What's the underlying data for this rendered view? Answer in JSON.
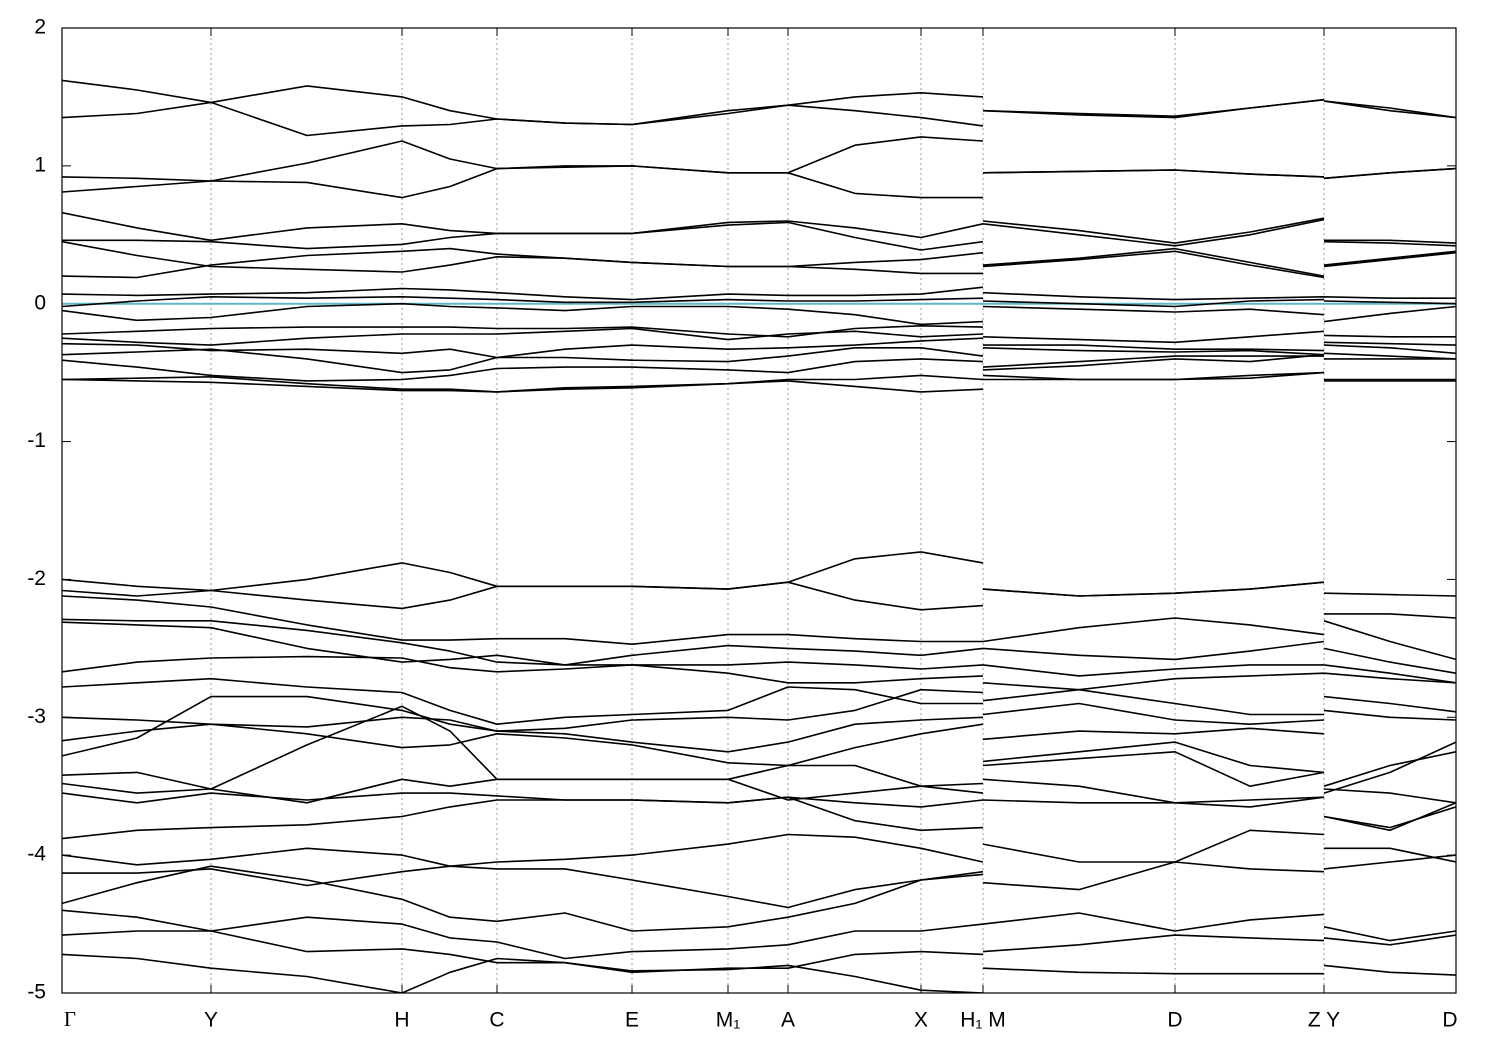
{
  "chart_data": {
    "type": "line",
    "line_color": "#000000",
    "fermi_level": 0,
    "fermi_color": "#5fb8c8",
    "grid": true,
    "xlim": [
      0,
      13.94
    ],
    "ylim": [
      -5,
      2
    ],
    "yticks": [
      -5,
      -4,
      -3,
      -2,
      -1,
      0,
      1,
      2
    ],
    "xticks": [
      {
        "value": 0,
        "label": "Γ"
      },
      {
        "value": 1.49,
        "label": "Y"
      },
      {
        "value": 3.4,
        "label": "H"
      },
      {
        "value": 4.35,
        "label": "C"
      },
      {
        "value": 5.7,
        "label": "E"
      },
      {
        "value": 6.66,
        "label": "M₁"
      },
      {
        "value": 7.26,
        "label": "A"
      },
      {
        "value": 8.59,
        "label": "X"
      },
      {
        "value": 9.21,
        "label": "H₁ M"
      },
      {
        "value": 11.13,
        "label": "D"
      },
      {
        "value": 12.62,
        "label": "Z Y"
      },
      {
        "value": 13.94,
        "label": "D"
      }
    ],
    "x": [
      0,
      0.75,
      1.49,
      2.45,
      3.4,
      3.88,
      4.35,
      5.03,
      5.7,
      6.66,
      7.26,
      7.93,
      8.59,
      9.21,
      9.21,
      9.21,
      10.17,
      11.13,
      11.88,
      12.62,
      12.62,
      12.62,
      13.28,
      13.94
    ],
    "series": [
      {
        "values": [
          1.62,
          1.55,
          1.46,
          1.58,
          1.5,
          1.4,
          1.34,
          1.31,
          1.3,
          1.4,
          1.44,
          1.5,
          1.53,
          1.5,
          null,
          1.4,
          1.38,
          1.36,
          1.42,
          1.48,
          null,
          1.47,
          1.42,
          1.35
        ]
      },
      {
        "values": [
          1.35,
          1.38,
          1.46,
          1.22,
          1.29,
          1.3,
          1.34,
          1.31,
          1.3,
          1.38,
          1.44,
          1.4,
          1.35,
          1.29,
          null,
          1.4,
          1.37,
          1.35,
          1.42,
          1.48,
          null,
          1.47,
          1.4,
          1.35
        ]
      },
      {
        "values": [
          0.92,
          0.91,
          0.89,
          1.02,
          1.18,
          1.05,
          0.98,
          1.0,
          1.0,
          0.95,
          0.95,
          1.15,
          1.21,
          1.18,
          null,
          0.95,
          0.96,
          0.97,
          0.94,
          0.92,
          null,
          0.91,
          0.95,
          0.98
        ]
      },
      {
        "values": [
          0.81,
          0.85,
          0.89,
          0.88,
          0.77,
          0.85,
          0.98,
          0.99,
          1.0,
          0.95,
          0.95,
          0.8,
          0.77,
          0.77,
          null,
          0.95,
          0.96,
          0.97,
          0.94,
          0.92,
          null,
          0.91,
          0.95,
          0.98
        ]
      },
      {
        "values": [
          0.66,
          0.55,
          0.46,
          0.55,
          0.58,
          0.53,
          0.51,
          0.51,
          0.51,
          0.59,
          0.6,
          0.55,
          0.48,
          0.58,
          null,
          0.6,
          0.53,
          0.44,
          0.52,
          0.62,
          null,
          0.46,
          0.46,
          0.44
        ]
      },
      {
        "values": [
          0.46,
          0.46,
          0.45,
          0.4,
          0.43,
          0.48,
          0.51,
          0.51,
          0.51,
          0.57,
          0.59,
          0.48,
          0.39,
          0.45,
          null,
          0.58,
          0.5,
          0.42,
          0.5,
          0.61,
          null,
          0.45,
          0.44,
          0.42
        ]
      },
      {
        "values": [
          0.45,
          0.35,
          0.27,
          0.25,
          0.23,
          0.28,
          0.34,
          0.33,
          0.3,
          0.27,
          0.27,
          0.3,
          0.32,
          0.37,
          null,
          0.27,
          0.32,
          0.38,
          0.28,
          0.19,
          null,
          0.27,
          0.32,
          0.37
        ]
      },
      {
        "values": [
          0.2,
          0.19,
          0.28,
          0.35,
          0.38,
          0.4,
          0.36,
          0.33,
          0.3,
          0.27,
          0.27,
          0.25,
          0.22,
          0.22,
          null,
          0.28,
          0.33,
          0.4,
          0.3,
          0.2,
          null,
          0.28,
          0.33,
          0.38
        ]
      },
      {
        "values": [
          0.07,
          0.06,
          0.07,
          0.08,
          0.11,
          0.1,
          0.08,
          0.05,
          0.03,
          0.07,
          0.06,
          0.06,
          0.07,
          0.12,
          null,
          0.08,
          0.05,
          0.03,
          0.04,
          0.05,
          null,
          0.05,
          0.04,
          0.04
        ]
      },
      {
        "values": [
          -0.02,
          0.02,
          0.05,
          0.04,
          0.05,
          0.04,
          0.03,
          0.01,
          0.01,
          0.03,
          0.02,
          0.02,
          0.03,
          0.04,
          null,
          0.02,
          0.0,
          -0.02,
          0.02,
          0.03,
          null,
          0.02,
          0.01,
          0.0
        ]
      },
      {
        "values": [
          -0.05,
          -0.12,
          -0.1,
          -0.02,
          0.0,
          -0.02,
          -0.03,
          -0.05,
          -0.02,
          -0.02,
          -0.04,
          -0.08,
          -0.15,
          -0.13,
          null,
          -0.02,
          -0.04,
          -0.06,
          -0.04,
          -0.08,
          null,
          -0.13,
          -0.07,
          -0.02
        ]
      },
      {
        "values": [
          -0.22,
          -0.2,
          -0.18,
          -0.17,
          -0.17,
          -0.17,
          -0.18,
          -0.18,
          -0.17,
          -0.22,
          -0.24,
          -0.18,
          -0.16,
          -0.17,
          null,
          -0.24,
          -0.26,
          -0.28,
          -0.24,
          -0.2,
          null,
          -0.23,
          -0.24,
          -0.24
        ]
      },
      {
        "values": [
          -0.25,
          -0.28,
          -0.3,
          -0.25,
          -0.22,
          -0.22,
          -0.22,
          -0.2,
          -0.18,
          -0.26,
          -0.22,
          -0.2,
          -0.24,
          -0.22,
          null,
          -0.3,
          -0.3,
          -0.33,
          -0.33,
          -0.34,
          null,
          -0.28,
          -0.29,
          -0.3
        ]
      },
      {
        "values": [
          -0.29,
          -0.3,
          -0.34,
          -0.33,
          -0.36,
          -0.33,
          -0.39,
          -0.33,
          -0.3,
          -0.33,
          -0.32,
          -0.3,
          -0.27,
          -0.25,
          null,
          -0.32,
          -0.34,
          -0.35,
          -0.34,
          -0.37,
          null,
          -0.3,
          -0.32,
          -0.36
        ]
      },
      {
        "values": [
          -0.37,
          -0.35,
          -0.33,
          -0.4,
          -0.5,
          -0.48,
          -0.39,
          -0.39,
          -0.41,
          -0.42,
          -0.38,
          -0.32,
          -0.32,
          -0.38,
          null,
          -0.46,
          -0.42,
          -0.38,
          -0.38,
          -0.38,
          null,
          -0.36,
          -0.38,
          -0.4
        ]
      },
      {
        "values": [
          -0.41,
          -0.46,
          -0.52,
          -0.56,
          -0.55,
          -0.52,
          -0.47,
          -0.46,
          -0.46,
          -0.48,
          -0.5,
          -0.42,
          -0.4,
          -0.42,
          null,
          -0.48,
          -0.45,
          -0.4,
          -0.42,
          -0.37,
          null,
          -0.4,
          -0.4,
          -0.4
        ]
      },
      {
        "values": [
          -0.55,
          -0.54,
          -0.53,
          -0.58,
          -0.62,
          -0.62,
          -0.64,
          -0.61,
          -0.6,
          -0.58,
          -0.55,
          -0.55,
          -0.52,
          -0.55,
          null,
          -0.52,
          -0.55,
          -0.55,
          -0.52,
          -0.5,
          null,
          -0.55,
          -0.55,
          -0.55
        ]
      },
      {
        "values": [
          -0.55,
          -0.56,
          -0.57,
          -0.6,
          -0.63,
          -0.63,
          -0.64,
          -0.62,
          -0.61,
          -0.58,
          -0.56,
          -0.6,
          -0.64,
          -0.62,
          null,
          -0.55,
          -0.55,
          -0.55,
          -0.54,
          -0.5,
          null,
          -0.56,
          -0.56,
          -0.56
        ]
      },
      {
        "values": [
          -2.0,
          -2.05,
          -2.08,
          -2.0,
          -1.88,
          -1.95,
          -2.05,
          -2.05,
          -2.05,
          -2.07,
          -2.02,
          -1.85,
          -1.8,
          -1.88,
          null,
          -2.07,
          -2.12,
          -2.1,
          -2.07,
          -2.02,
          null,
          -2.1,
          -2.11,
          -2.12
        ]
      },
      {
        "values": [
          -2.08,
          -2.12,
          -2.08,
          -2.15,
          -2.21,
          -2.15,
          -2.05,
          -2.05,
          -2.05,
          -2.07,
          -2.02,
          -2.15,
          -2.22,
          -2.19,
          null,
          -2.07,
          -2.12,
          -2.1,
          -2.07,
          -2.02,
          null,
          -2.25,
          -2.25,
          -2.28
        ]
      },
      {
        "values": [
          -2.12,
          -2.15,
          -2.2,
          -2.33,
          -2.44,
          -2.44,
          -2.43,
          -2.43,
          -2.47,
          -2.4,
          -2.4,
          -2.43,
          -2.45,
          -2.45,
          null,
          -2.45,
          -2.35,
          -2.28,
          -2.33,
          -2.4,
          null,
          -2.3,
          -2.45,
          -2.58
        ]
      },
      {
        "values": [
          -2.29,
          -2.3,
          -2.3,
          -2.37,
          -2.46,
          -2.52,
          -2.6,
          -2.62,
          -2.55,
          -2.48,
          -2.5,
          -2.52,
          -2.55,
          -2.5,
          null,
          -2.5,
          -2.55,
          -2.58,
          -2.52,
          -2.45,
          null,
          -2.5,
          -2.6,
          -2.68
        ]
      },
      {
        "values": [
          -2.31,
          -2.33,
          -2.35,
          -2.5,
          -2.6,
          -2.58,
          -2.55,
          -2.62,
          -2.62,
          -2.62,
          -2.6,
          -2.62,
          -2.65,
          -2.62,
          null,
          -2.62,
          -2.7,
          -2.65,
          -2.62,
          -2.62,
          null,
          -2.62,
          -2.68,
          -2.75
        ]
      },
      {
        "values": [
          -2.67,
          -2.6,
          -2.57,
          -2.56,
          -2.57,
          -2.64,
          -2.67,
          -2.65,
          -2.62,
          -2.68,
          -2.75,
          -2.75,
          -2.72,
          -2.7,
          null,
          -2.75,
          -2.8,
          -2.72,
          -2.7,
          -2.68,
          null,
          -2.68,
          -2.72,
          -2.75
        ]
      },
      {
        "values": [
          -2.78,
          -2.75,
          -2.72,
          -2.78,
          -2.82,
          -2.95,
          -3.05,
          -3.0,
          -2.98,
          -2.95,
          -2.78,
          -2.8,
          -2.9,
          -2.9,
          null,
          -2.88,
          -2.8,
          -2.9,
          -2.98,
          -2.98,
          null,
          -2.85,
          -2.9,
          -2.96
        ]
      },
      {
        "values": [
          -3.0,
          -3.02,
          -3.05,
          -3.07,
          -3.0,
          -3.02,
          -3.1,
          -3.08,
          -3.02,
          -3.0,
          -3.02,
          -2.95,
          -2.8,
          -2.82,
          null,
          -2.98,
          -2.9,
          -3.02,
          -3.05,
          -3.02,
          null,
          -2.95,
          -3.0,
          -3.02
        ]
      },
      {
        "values": [
          -3.17,
          -3.1,
          -3.05,
          -3.12,
          -3.22,
          -3.2,
          -3.12,
          -3.15,
          -3.2,
          -3.33,
          -3.35,
          -3.22,
          -3.12,
          -3.05,
          null,
          -3.16,
          -3.1,
          -3.12,
          -3.08,
          -3.12,
          null,
          -3.55,
          -3.4,
          -3.18
        ]
      },
      {
        "values": [
          -3.28,
          -3.15,
          -2.85,
          -2.85,
          -2.95,
          -3.05,
          -3.1,
          -3.12,
          -3.18,
          -3.25,
          -3.18,
          -3.05,
          -3.02,
          -3.0,
          null,
          -3.32,
          -3.25,
          -3.18,
          -3.35,
          -3.4,
          null,
          -3.5,
          -3.35,
          -3.25
        ]
      },
      {
        "values": [
          -3.42,
          -3.4,
          -3.52,
          -3.2,
          -2.92,
          -3.1,
          -3.45,
          -3.45,
          -3.45,
          -3.45,
          -3.6,
          -3.55,
          -3.5,
          -3.48,
          null,
          -3.35,
          -3.3,
          -3.25,
          -3.5,
          -3.4,
          null,
          -3.52,
          -3.55,
          -3.62
        ]
      },
      {
        "values": [
          -3.48,
          -3.55,
          -3.52,
          -3.62,
          -3.45,
          -3.5,
          -3.45,
          -3.45,
          -3.45,
          -3.45,
          -3.35,
          -3.35,
          -3.5,
          -3.55,
          null,
          -3.45,
          -3.5,
          -3.62,
          -3.6,
          -3.58,
          null,
          -3.72,
          -3.82,
          -3.62
        ]
      },
      {
        "values": [
          -3.55,
          -3.62,
          -3.55,
          -3.6,
          -3.55,
          -3.55,
          -3.57,
          -3.6,
          -3.6,
          -3.62,
          -3.58,
          -3.62,
          -3.65,
          -3.6,
          null,
          -3.6,
          -3.62,
          -3.62,
          -3.65,
          -3.58,
          null,
          -3.72,
          -3.8,
          -3.65
        ]
      },
      {
        "values": [
          -3.88,
          -3.82,
          -3.8,
          -3.78,
          -3.72,
          -3.65,
          -3.6,
          -3.6,
          -3.6,
          -3.62,
          -3.58,
          -3.75,
          -3.82,
          -3.8,
          null,
          -3.92,
          -4.05,
          -4.05,
          -3.82,
          -3.85,
          null,
          -3.95,
          -3.95,
          -4.05
        ]
      },
      {
        "values": [
          -4.0,
          -4.07,
          -4.03,
          -3.95,
          -4.0,
          -4.08,
          -4.05,
          -4.03,
          -4.0,
          -3.92,
          -3.85,
          -3.87,
          -3.95,
          -4.05,
          null,
          -4.2,
          -4.25,
          -4.05,
          -4.1,
          -4.12,
          null,
          -4.1,
          -4.05,
          -4.0
        ]
      },
      {
        "values": [
          -4.13,
          -4.13,
          -4.1,
          -4.22,
          -4.12,
          -4.08,
          -4.1,
          -4.1,
          -4.18,
          -4.3,
          -4.38,
          -4.25,
          -4.18,
          -4.12,
          null,
          -4.5,
          -4.42,
          -4.55,
          -4.47,
          -4.43,
          null,
          -4.52,
          -4.62,
          -4.55
        ]
      },
      {
        "values": [
          -4.35,
          -4.2,
          -4.08,
          -4.18,
          -4.32,
          -4.45,
          -4.48,
          -4.42,
          -4.55,
          -4.52,
          -4.45,
          -4.35,
          -4.18,
          -4.14,
          null,
          -4.7,
          -4.65,
          -4.58,
          -4.6,
          -4.62,
          null,
          -4.6,
          -4.65,
          -4.58
        ]
      },
      {
        "values": [
          -4.4,
          -4.45,
          -4.55,
          -4.45,
          -4.5,
          -4.6,
          -4.63,
          -4.75,
          -4.7,
          -4.68,
          -4.65,
          -4.55,
          -4.55,
          -4.5,
          null,
          -4.82,
          -4.85,
          -4.86,
          -4.86,
          -4.86,
          null,
          -4.8,
          -4.85,
          -4.87
        ]
      },
      {
        "values": [
          -4.58,
          -4.55,
          -4.55,
          -4.7,
          -4.68,
          -4.72,
          -4.78,
          -4.78,
          -4.85,
          -4.82,
          -4.82,
          -4.72,
          -4.7,
          -4.72,
          null,
          null,
          null,
          null,
          null,
          null,
          null,
          null,
          null,
          null
        ]
      },
      {
        "values": [
          -4.72,
          -4.75,
          -4.82,
          -4.88,
          -5.0,
          -4.85,
          -4.75,
          -4.78,
          -4.84,
          -4.83,
          -4.8,
          -4.88,
          -4.98,
          -5.0,
          null,
          null,
          null,
          null,
          null,
          null,
          null,
          null,
          null,
          null
        ]
      }
    ]
  }
}
